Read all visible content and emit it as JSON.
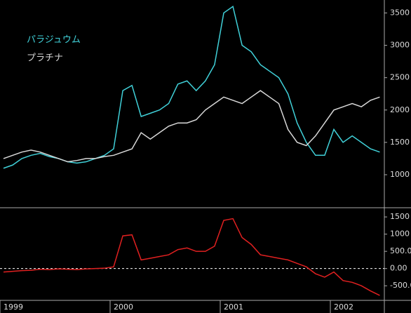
{
  "chart_data": [
    {
      "type": "line",
      "categories": [
        "1999",
        null,
        null,
        null,
        null,
        null,
        null,
        null,
        null,
        null,
        null,
        null,
        "2000",
        null,
        null,
        null,
        null,
        null,
        null,
        null,
        null,
        null,
        null,
        null,
        "2001",
        null,
        null,
        null,
        null,
        null,
        null,
        null,
        null,
        null,
        null,
        null,
        "2002",
        null,
        null,
        null,
        null,
        null
      ],
      "series": [
        {
          "name": "パラジュウム",
          "color": "#40d0d8",
          "values": [
            1100,
            1150,
            1250,
            1300,
            1330,
            1280,
            1250,
            1200,
            1180,
            1200,
            1250,
            1300,
            1400,
            2300,
            2380,
            1900,
            1950,
            2000,
            2100,
            2400,
            2450,
            2300,
            2450,
            2700,
            3500,
            3600,
            3000,
            2900,
            2700,
            2600,
            2500,
            2250,
            1800,
            1500,
            1300,
            1300,
            1700,
            1500,
            1600,
            1500,
            1400,
            1350
          ]
        },
        {
          "name": "プラチナ",
          "color": "#d8d8d8",
          "values": [
            1250,
            1300,
            1350,
            1380,
            1350,
            1300,
            1250,
            1200,
            1220,
            1250,
            1250,
            1280,
            1300,
            1350,
            1400,
            1650,
            1550,
            1650,
            1750,
            1800,
            1800,
            1850,
            2000,
            2100,
            2200,
            2150,
            2100,
            2200,
            2300,
            2200,
            2100,
            1700,
            1500,
            1450,
            1600,
            1800,
            2000,
            2050,
            2100,
            2050,
            2150,
            2200
          ]
        }
      ],
      "ylim": [
        490,
        3700
      ],
      "yticks": [
        1000,
        1500,
        2000,
        2500,
        3000,
        3500
      ]
    },
    {
      "type": "line",
      "series": [
        {
          "color": "#e02020",
          "values": [
            -100,
            -80,
            -60,
            -50,
            -20,
            -30,
            -10,
            -20,
            -30,
            -10,
            0,
            10,
            50,
            950,
            980,
            250,
            300,
            350,
            400,
            550,
            600,
            500,
            500,
            650,
            1400,
            1450,
            900,
            700,
            400,
            350,
            300,
            250,
            150,
            50,
            -150,
            -250,
            -100,
            -350,
            -400,
            -500,
            -650,
            -780
          ]
        }
      ],
      "ylim": [
        -924,
        1767
      ],
      "yticks": [
        1500,
        {
          "value": 1000,
          "label": "1000"
        },
        {
          "value": 500,
          "label": "500.0"
        },
        {
          "value": 0,
          "label": "0.00"
        },
        {
          "value": -500,
          "label": "-500.0"
        }
      ],
      "zero_line": true
    }
  ]
}
